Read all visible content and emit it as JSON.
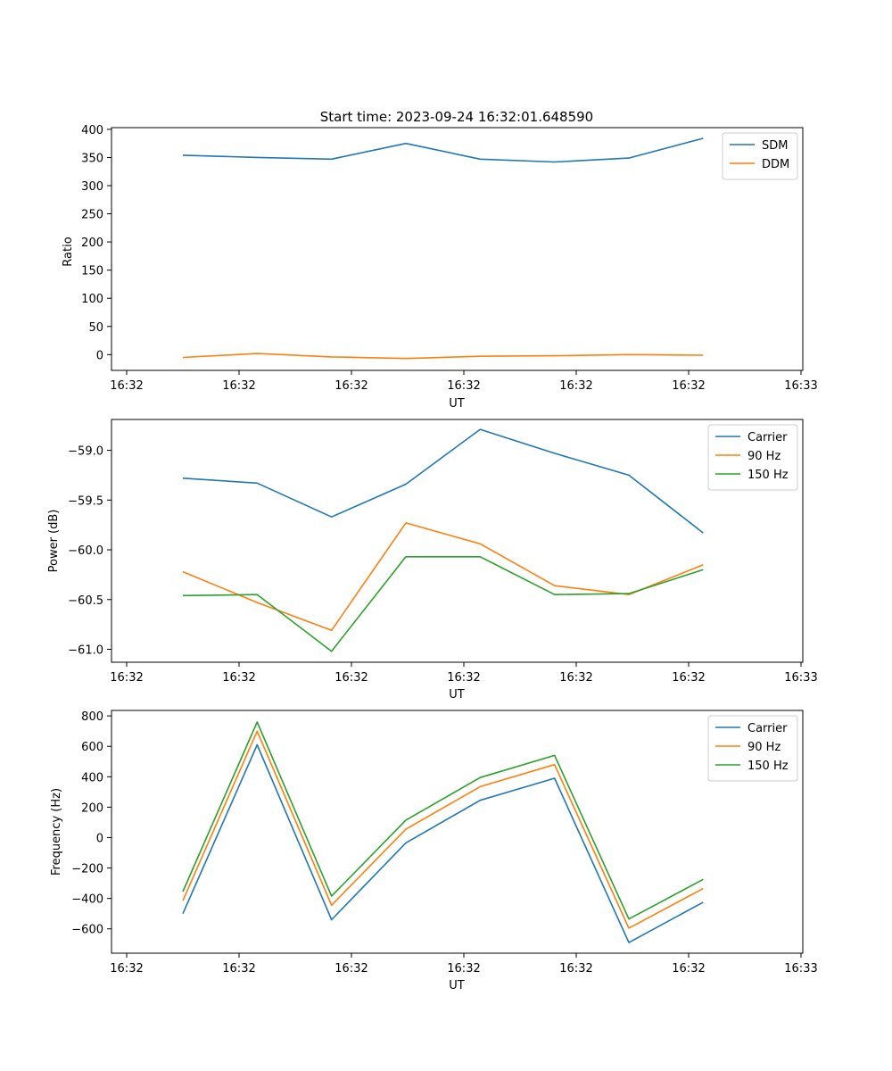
{
  "title": "Start time: 2023-09-24 16:32:01.648590",
  "colors": {
    "blue": "#1f77b4",
    "orange": "#ff7f0e",
    "green": "#2ca02c"
  },
  "chart_data": [
    {
      "type": "line",
      "title": "Start time: 2023-09-24 16:32:01.648590",
      "xlabel": "UT",
      "ylabel": "Ratio",
      "x_tick_labels": [
        "16:32",
        "16:32",
        "16:32",
        "16:32",
        "16:32",
        "16:32",
        "16:32"
      ],
      "x_last_tick_label": "16:33",
      "yticks": [
        "0",
        "50",
        "100",
        "150",
        "200",
        "250",
        "300",
        "350",
        "400"
      ],
      "ylim": [
        -28,
        403
      ],
      "x": [
        1,
        2,
        3,
        4,
        5,
        6,
        7,
        8
      ],
      "xlim": [
        0.04,
        9.34
      ],
      "legend": "top-right",
      "series": [
        {
          "name": "SDM",
          "color": "#1f77b4",
          "values": [
            354,
            350,
            347,
            375,
            347,
            342,
            349,
            384
          ]
        },
        {
          "name": "DDM",
          "color": "#ff7f0e",
          "values": [
            -5,
            2,
            -4,
            -7,
            -3,
            -2,
            0,
            -1
          ]
        }
      ]
    },
    {
      "type": "line",
      "xlabel": "UT",
      "ylabel": "Power (dB)",
      "x_tick_labels": [
        "16:32",
        "16:32",
        "16:32",
        "16:32",
        "16:32",
        "16:32",
        "16:32"
      ],
      "x_last_tick_label": "16:33",
      "yticks": [
        "−61.0",
        "−60.5",
        "−60.0",
        "−59.5",
        "−59.0"
      ],
      "ylim": [
        -61.13,
        -58.69
      ],
      "x": [
        1,
        2,
        3,
        4,
        5,
        6,
        7,
        8
      ],
      "xlim": [
        0.04,
        9.34
      ],
      "legend": "top-right",
      "series": [
        {
          "name": "Carrier",
          "color": "#1f77b4",
          "values": [
            -59.28,
            -59.33,
            -59.67,
            -59.34,
            -58.79,
            -59.03,
            -59.25,
            -59.83
          ]
        },
        {
          "name": "90 Hz",
          "color": "#ff7f0e",
          "values": [
            -60.22,
            -60.53,
            -60.81,
            -59.73,
            -59.94,
            -60.36,
            -60.45,
            -60.15
          ]
        },
        {
          "name": "150 Hz",
          "color": "#2ca02c",
          "values": [
            -60.46,
            -60.45,
            -61.02,
            -60.07,
            -60.07,
            -60.45,
            -60.44,
            -60.2
          ]
        }
      ]
    },
    {
      "type": "line",
      "xlabel": "UT",
      "ylabel": "Frequency (Hz)",
      "x_tick_labels": [
        "16:32",
        "16:32",
        "16:32",
        "16:32",
        "16:32",
        "16:32",
        "16:32"
      ],
      "x_last_tick_label": "16:33",
      "yticks": [
        "−600",
        "−400",
        "−200",
        "0",
        "200",
        "400",
        "600",
        "800"
      ],
      "ylim": [
        -760,
        836
      ],
      "x": [
        1,
        2,
        3,
        4,
        5,
        6,
        7,
        8
      ],
      "xlim": [
        0.04,
        9.34
      ],
      "legend": "top-right",
      "series": [
        {
          "name": "Carrier",
          "color": "#1f77b4",
          "values": [
            -500,
            610,
            -540,
            -35,
            245,
            390,
            -690,
            -425
          ]
        },
        {
          "name": "90 Hz",
          "color": "#ff7f0e",
          "values": [
            -415,
            700,
            -445,
            55,
            335,
            480,
            -595,
            -335
          ]
        },
        {
          "name": "150 Hz",
          "color": "#2ca02c",
          "values": [
            -355,
            760,
            -385,
            115,
            395,
            540,
            -535,
            -275
          ]
        }
      ]
    }
  ]
}
